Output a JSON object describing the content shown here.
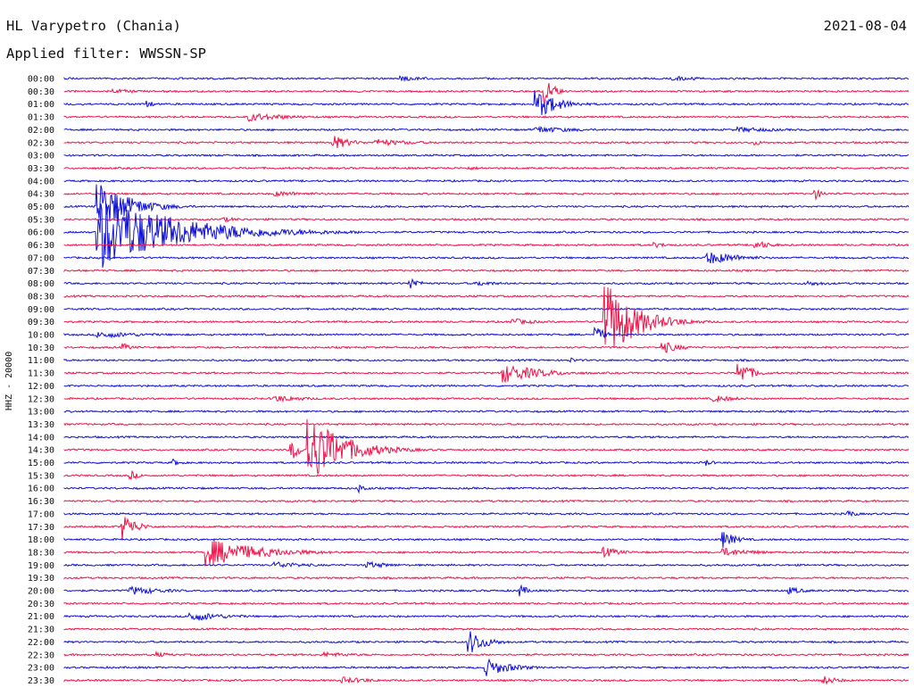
{
  "header": {
    "station": "HL Varypetro (Chania)",
    "date": "2021-08-04",
    "filter_prefix": "Applied filter:",
    "filter": "WWSSN-SP"
  },
  "channel_label": "HHZ - 20000",
  "colors": {
    "even_row": "#1010d8",
    "odd_row": "#f0144a"
  },
  "chart_data": {
    "type": "helicorder",
    "title": "HL Varypetro (Chania)",
    "xlabel": "",
    "ylabel": "HHZ - 20000",
    "rows": [
      "00:00",
      "00:30",
      "01:00",
      "01:30",
      "02:00",
      "02:30",
      "03:00",
      "03:30",
      "04:00",
      "04:30",
      "05:00",
      "05:30",
      "06:00",
      "06:30",
      "07:00",
      "07:30",
      "08:00",
      "08:30",
      "09:00",
      "09:30",
      "10:00",
      "10:30",
      "11:00",
      "11:30",
      "12:00",
      "12:30",
      "13:00",
      "13:30",
      "14:00",
      "14:30",
      "15:00",
      "15:30",
      "16:00",
      "16:30",
      "17:00",
      "17:30",
      "18:00",
      "18:30",
      "19:00",
      "19:30",
      "20:00",
      "20:30",
      "21:00",
      "21:30",
      "22:00",
      "22:30",
      "23:00",
      "23:30"
    ],
    "row_minutes": 30,
    "events": [
      {
        "row": 0,
        "t": 0.4,
        "amp": 3,
        "dur": 0.035
      },
      {
        "row": 0,
        "t": 0.72,
        "amp": 3,
        "dur": 0.04
      },
      {
        "row": 1,
        "t": 0.06,
        "amp": 3,
        "dur": 0.04
      },
      {
        "row": 1,
        "t": 0.57,
        "amp": 16,
        "dur": 0.01
      },
      {
        "row": 2,
        "t": 0.56,
        "amp": 16,
        "dur": 0.025
      },
      {
        "row": 2,
        "t": 0.1,
        "amp": 4,
        "dur": 0.01
      },
      {
        "row": 3,
        "t": 0.22,
        "amp": 5,
        "dur": 0.05
      },
      {
        "row": 4,
        "t": 0.56,
        "amp": 4,
        "dur": 0.05
      },
      {
        "row": 4,
        "t": 0.8,
        "amp": 3,
        "dur": 0.06
      },
      {
        "row": 5,
        "t": 0.32,
        "amp": 8,
        "dur": 0.02
      },
      {
        "row": 5,
        "t": 0.37,
        "amp": 4,
        "dur": 0.05
      },
      {
        "row": 5,
        "t": 0.82,
        "amp": 3,
        "dur": 0.01
      },
      {
        "row": 7,
        "t": 0.48,
        "amp": 2,
        "dur": 0.03
      },
      {
        "row": 9,
        "t": 0.89,
        "amp": 6,
        "dur": 0.01
      },
      {
        "row": 9,
        "t": 0.25,
        "amp": 3,
        "dur": 0.06
      },
      {
        "row": 10,
        "t": 0.04,
        "amp": 30,
        "dur": 0.035
      },
      {
        "row": 11,
        "t": 0.19,
        "amp": 3,
        "dur": 0.02
      },
      {
        "row": 12,
        "t": 0.04,
        "amp": 44,
        "dur": 0.09
      },
      {
        "row": 13,
        "t": 0.82,
        "amp": 5,
        "dur": 0.02
      },
      {
        "row": 13,
        "t": 0.7,
        "amp": 3,
        "dur": 0.02
      },
      {
        "row": 14,
        "t": 0.76,
        "amp": 8,
        "dur": 0.04
      },
      {
        "row": 16,
        "t": 0.41,
        "amp": 8,
        "dur": 0.01
      },
      {
        "row": 16,
        "t": 0.49,
        "amp": 3,
        "dur": 0.03
      },
      {
        "row": 16,
        "t": 0.88,
        "amp": 3,
        "dur": 0.03
      },
      {
        "row": 19,
        "t": 0.64,
        "amp": 46,
        "dur": 0.035
      },
      {
        "row": 19,
        "t": 0.53,
        "amp": 4,
        "dur": 0.03
      },
      {
        "row": 20,
        "t": 0.04,
        "amp": 4,
        "dur": 0.06
      },
      {
        "row": 20,
        "t": 0.63,
        "amp": 10,
        "dur": 0.01
      },
      {
        "row": 21,
        "t": 0.07,
        "amp": 5,
        "dur": 0.01
      },
      {
        "row": 21,
        "t": 0.71,
        "amp": 7,
        "dur": 0.02
      },
      {
        "row": 22,
        "t": 0.6,
        "amp": 3,
        "dur": 0.01
      },
      {
        "row": 23,
        "t": 0.52,
        "amp": 11,
        "dur": 0.045
      },
      {
        "row": 23,
        "t": 0.8,
        "amp": 14,
        "dur": 0.015
      },
      {
        "row": 25,
        "t": 0.25,
        "amp": 4,
        "dur": 0.04
      },
      {
        "row": 25,
        "t": 0.77,
        "amp": 4,
        "dur": 0.03
      },
      {
        "row": 29,
        "t": 0.27,
        "amp": 12,
        "dur": 0.01
      },
      {
        "row": 29,
        "t": 0.29,
        "amp": 40,
        "dur": 0.04
      },
      {
        "row": 30,
        "t": 0.13,
        "amp": 4,
        "dur": 0.01
      },
      {
        "row": 30,
        "t": 0.76,
        "amp": 4,
        "dur": 0.01
      },
      {
        "row": 31,
        "t": 0.08,
        "amp": 5,
        "dur": 0.01
      },
      {
        "row": 32,
        "t": 0.35,
        "amp": 5,
        "dur": 0.01
      },
      {
        "row": 34,
        "t": 0.93,
        "amp": 4,
        "dur": 0.01
      },
      {
        "row": 35,
        "t": 0.07,
        "amp": 16,
        "dur": 0.015
      },
      {
        "row": 36,
        "t": 0.78,
        "amp": 10,
        "dur": 0.015
      },
      {
        "row": 37,
        "t": 0.17,
        "amp": 16,
        "dur": 0.06
      },
      {
        "row": 37,
        "t": 0.64,
        "amp": 6,
        "dur": 0.02
      },
      {
        "row": 37,
        "t": 0.78,
        "amp": 5,
        "dur": 0.04
      },
      {
        "row": 38,
        "t": 0.25,
        "amp": 4,
        "dur": 0.04
      },
      {
        "row": 38,
        "t": 0.36,
        "amp": 4,
        "dur": 0.03
      },
      {
        "row": 40,
        "t": 0.08,
        "amp": 5,
        "dur": 0.04
      },
      {
        "row": 40,
        "t": 0.54,
        "amp": 7,
        "dur": 0.01
      },
      {
        "row": 40,
        "t": 0.86,
        "amp": 4,
        "dur": 0.02
      },
      {
        "row": 42,
        "t": 0.15,
        "amp": 6,
        "dur": 0.04
      },
      {
        "row": 44,
        "t": 0.48,
        "amp": 14,
        "dur": 0.02
      },
      {
        "row": 45,
        "t": 0.11,
        "amp": 3,
        "dur": 0.02
      },
      {
        "row": 45,
        "t": 0.31,
        "amp": 3,
        "dur": 0.04
      },
      {
        "row": 46,
        "t": 0.5,
        "amp": 10,
        "dur": 0.03
      },
      {
        "row": 47,
        "t": 0.33,
        "amp": 4,
        "dur": 0.04
      },
      {
        "row": 47,
        "t": 0.9,
        "amp": 5,
        "dur": 0.02
      }
    ]
  }
}
